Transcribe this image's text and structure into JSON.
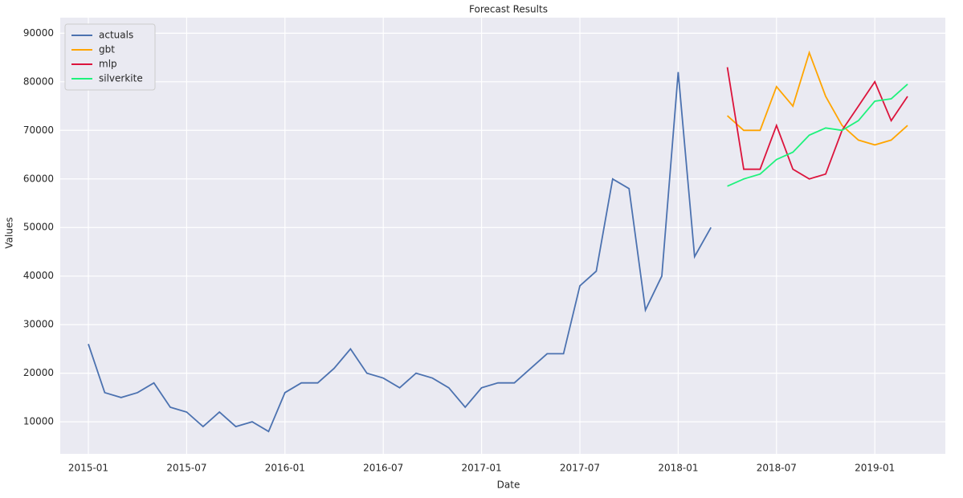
{
  "chart_data": {
    "type": "line",
    "title": "Forecast Results",
    "x_label": "Date",
    "y_label": "Values",
    "x": [
      "2015-01",
      "2015-02",
      "2015-03",
      "2015-04",
      "2015-05",
      "2015-06",
      "2015-07",
      "2015-08",
      "2015-09",
      "2015-10",
      "2015-11",
      "2015-12",
      "2016-01",
      "2016-02",
      "2016-03",
      "2016-04",
      "2016-05",
      "2016-06",
      "2016-07",
      "2016-08",
      "2016-09",
      "2016-10",
      "2016-11",
      "2016-12",
      "2017-01",
      "2017-02",
      "2017-03",
      "2017-04",
      "2017-05",
      "2017-06",
      "2017-07",
      "2017-08",
      "2017-09",
      "2017-10",
      "2017-11",
      "2017-12",
      "2018-01",
      "2018-02",
      "2018-03",
      "2018-04",
      "2018-05",
      "2018-06",
      "2018-07",
      "2018-08",
      "2018-09",
      "2018-10",
      "2018-11",
      "2018-12",
      "2019-01",
      "2019-02",
      "2019-03"
    ],
    "xticks": [
      "2015-01",
      "2015-07",
      "2016-01",
      "2016-07",
      "2017-01",
      "2017-07",
      "2018-01",
      "2018-07",
      "2019-01"
    ],
    "series": [
      {
        "name": "actuals",
        "color": "#4c72b0",
        "values": [
          26000,
          16000,
          15000,
          16000,
          18000,
          13000,
          12000,
          9000,
          12000,
          9000,
          10000,
          8000,
          16000,
          18000,
          18000,
          21000,
          25000,
          20000,
          19000,
          17000,
          20000,
          19000,
          17000,
          13000,
          17000,
          18000,
          18000,
          21000,
          24000,
          24000,
          38000,
          41000,
          60000,
          58000,
          33000,
          40000,
          82000,
          44000,
          50000,
          null,
          null,
          null,
          null,
          null,
          null,
          null,
          null,
          null,
          null,
          null,
          null
        ]
      },
      {
        "name": "gbt",
        "color": "#ffa500",
        "values": [
          null,
          null,
          null,
          null,
          null,
          null,
          null,
          null,
          null,
          null,
          null,
          null,
          null,
          null,
          null,
          null,
          null,
          null,
          null,
          null,
          null,
          null,
          null,
          null,
          null,
          null,
          null,
          null,
          null,
          null,
          null,
          null,
          null,
          null,
          null,
          null,
          null,
          null,
          null,
          73000,
          70000,
          70000,
          79000,
          75000,
          86000,
          77000,
          71000,
          68000,
          67000,
          68000,
          71000
        ]
      },
      {
        "name": "mlp",
        "color": "#dc143c",
        "values": [
          null,
          null,
          null,
          null,
          null,
          null,
          null,
          null,
          null,
          null,
          null,
          null,
          null,
          null,
          null,
          null,
          null,
          null,
          null,
          null,
          null,
          null,
          null,
          null,
          null,
          null,
          null,
          null,
          null,
          null,
          null,
          null,
          null,
          null,
          null,
          null,
          null,
          null,
          null,
          83000,
          62000,
          62000,
          71000,
          62000,
          60000,
          61000,
          70000,
          75000,
          80000,
          72000,
          77000
        ]
      },
      {
        "name": "silverkite",
        "color": "#1ef27c",
        "values": [
          null,
          null,
          null,
          null,
          null,
          null,
          null,
          null,
          null,
          null,
          null,
          null,
          null,
          null,
          null,
          null,
          null,
          null,
          null,
          null,
          null,
          null,
          null,
          null,
          null,
          null,
          null,
          null,
          null,
          null,
          null,
          null,
          null,
          null,
          null,
          null,
          null,
          null,
          null,
          58500,
          60000,
          61000,
          64000,
          65500,
          69000,
          70500,
          70000,
          72000,
          76000,
          76500,
          79500
        ]
      }
    ],
    "ylim": [
      3400,
      93200
    ],
    "yticks": [
      10000,
      20000,
      30000,
      40000,
      50000,
      60000,
      70000,
      80000,
      90000
    ],
    "grid": true,
    "legend": "upper left",
    "background": "#eaeaf2"
  }
}
